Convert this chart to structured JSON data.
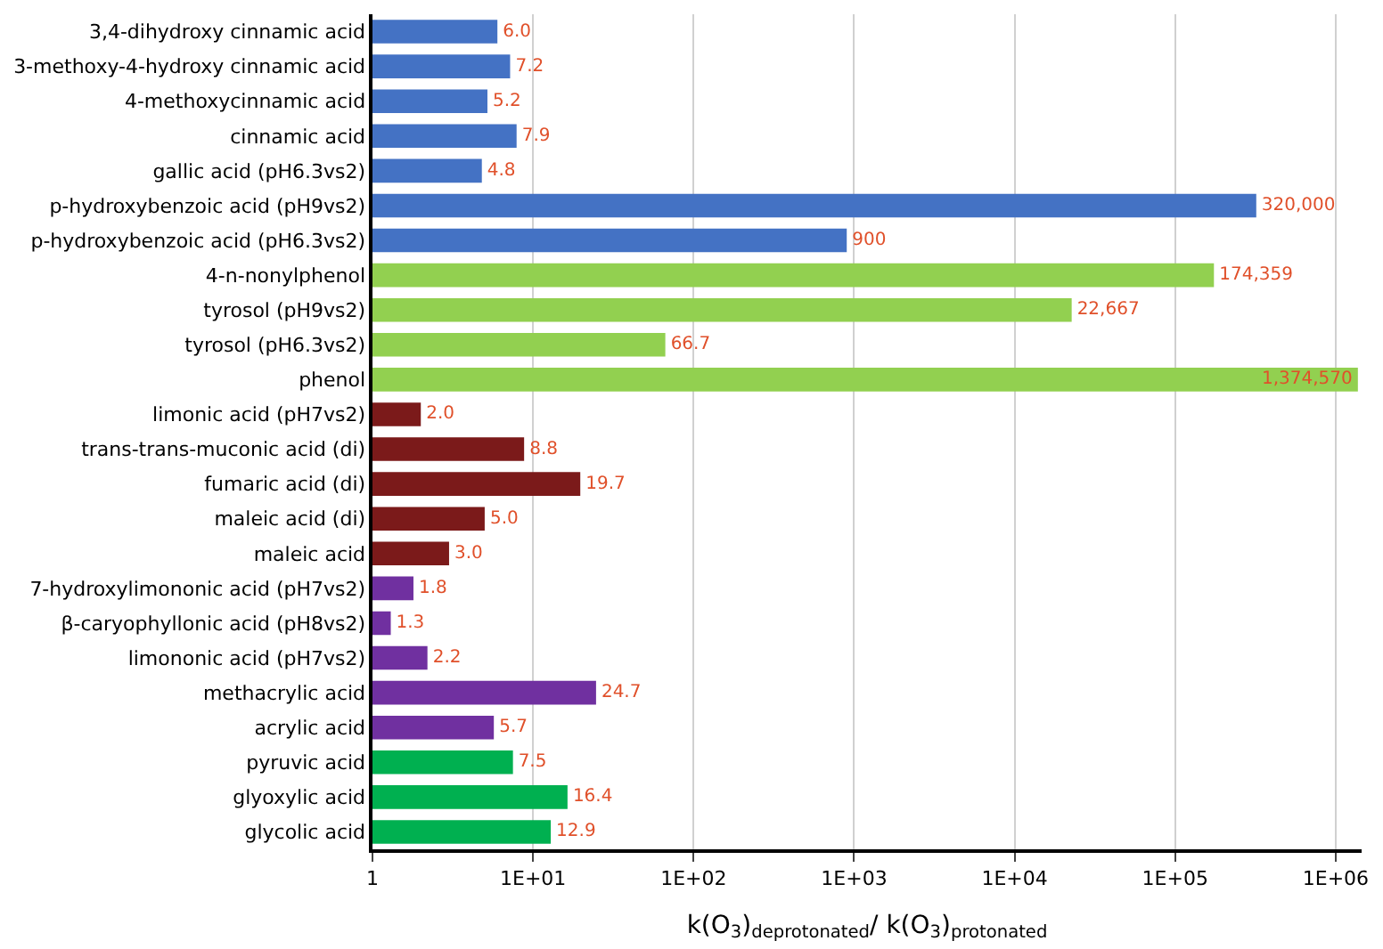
{
  "chart_data": {
    "type": "bar",
    "orientation": "horizontal",
    "log": "x",
    "xlabel": "k(O$_{3}$)$_{deprotonated}$/ k(O$_{3}$)$_{protonated}$",
    "categories": [
      "3,4-dihydroxy cinnamic acid",
      "3-methoxy-4-hydroxy cinnamic acid",
      "4-methoxycinnamic acid",
      "cinnamic acid",
      "gallic acid (pH6.3vs2)",
      "p-hydroxybenzoic acid (pH9vs2)",
      "p-hydroxybenzoic acid (pH6.3vs2)",
      "4-n-nonylphenol",
      "tyrosol (pH9vs2)",
      "tyrosol (pH6.3vs2)",
      "phenol",
      "limonic acid (pH7vs2)",
      "trans-trans-muconic acid (di)",
      "fumaric acid (di)",
      "maleic acid (di)",
      "maleic acid",
      "7-hydroxylimononic acid (pH7vs2)",
      "β-caryophyllonic acid (pH8vs2)",
      "limononic acid (pH7vs2)",
      "methacrylic acid",
      "acrylic acid",
      "pyruvic acid",
      "glyoxylic acid",
      "glycolic acid"
    ],
    "values": [
      6.0,
      7.2,
      5.2,
      7.9,
      4.8,
      320000,
      900,
      174359,
      22667,
      66.7,
      1374570,
      2.0,
      8.8,
      19.7,
      5.0,
      3.0,
      1.8,
      1.3,
      2.2,
      24.7,
      5.7,
      7.5,
      16.4,
      12.9
    ],
    "value_labels": [
      "6.0",
      "7.2",
      "5.2",
      "7.9",
      "4.8",
      "320,000",
      "900",
      "174,359",
      "22,667",
      "66.7",
      "1,374,570",
      "2.0",
      "8.8",
      "19.7",
      "5.0",
      "3.0",
      "1.8",
      "1.3",
      "2.2",
      "24.7",
      "5.7",
      "7.5",
      "16.4",
      "12.9"
    ],
    "colors": [
      "#4472c4",
      "#4472c4",
      "#4472c4",
      "#4472c4",
      "#4472c4",
      "#4472c4",
      "#4472c4",
      "#92d050",
      "#92d050",
      "#92d050",
      "#92d050",
      "#7b1a1a",
      "#7b1a1a",
      "#7b1a1a",
      "#7b1a1a",
      "#7b1a1a",
      "#7030a0",
      "#7030a0",
      "#7030a0",
      "#7030a0",
      "#7030a0",
      "#00b050",
      "#00b050",
      "#00b050"
    ],
    "xlim": [
      1,
      1450000
    ],
    "xticks": [
      1,
      {
        "value": 10,
        "label": "1E+01"
      },
      {
        "value": 100,
        "label": "1E+02"
      },
      {
        "value": 1000,
        "label": "1E+03"
      },
      {
        "value": 10000,
        "label": "1E+04"
      },
      {
        "value": 100000,
        "label": "1E+05"
      },
      {
        "value": 1000000,
        "label": "1E+06"
      }
    ],
    "grid": "x"
  }
}
